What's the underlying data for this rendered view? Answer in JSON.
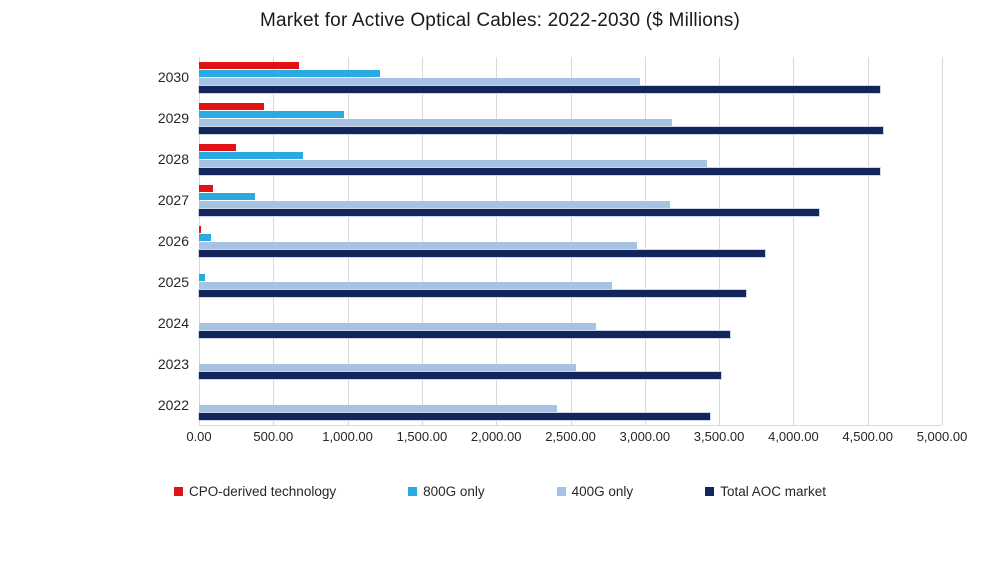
{
  "chart_data": {
    "type": "bar",
    "orientation": "horizontal",
    "title": "Market for Active Optical Cables: 2022-2030 ($ Millions)",
    "categories": [
      "2030",
      "2029",
      "2028",
      "2027",
      "2026",
      "2025",
      "2024",
      "2023",
      "2022"
    ],
    "series": [
      {
        "name": "CPO-derived technology",
        "color": "#e01214",
        "values": [
          670,
          440,
          250,
          95,
          15,
          0,
          0,
          0,
          0
        ]
      },
      {
        "name": "800G only",
        "color": "#29abe2",
        "values": [
          1220,
          975,
          700,
          375,
          80,
          40,
          0,
          0,
          0
        ]
      },
      {
        "name": "400G only",
        "color": "#a7c3e4",
        "values": [
          2970,
          3185,
          3420,
          3170,
          2950,
          2780,
          2670,
          2540,
          2410
        ]
      },
      {
        "name": "Total AOC market",
        "color": "#13265b",
        "values": [
          4585,
          4605,
          4585,
          4175,
          3810,
          3680,
          3575,
          3515,
          3440
        ]
      }
    ],
    "x_axis": {
      "min": 0,
      "max": 5000,
      "tick_interval": 500,
      "tick_labels": [
        "0.00",
        "500.00",
        "1,000.00",
        "1,500.00",
        "2,000.00",
        "2,500.00",
        "3,000.00",
        "3,500.00",
        "4,000.00",
        "4,500.00",
        "5,000.00"
      ]
    },
    "ylabel": "",
    "xlabel": "",
    "legend_position": "bottom",
    "grid": "vertical",
    "gridline_color": "#d9d9d9",
    "background_color": "#ffffff"
  }
}
